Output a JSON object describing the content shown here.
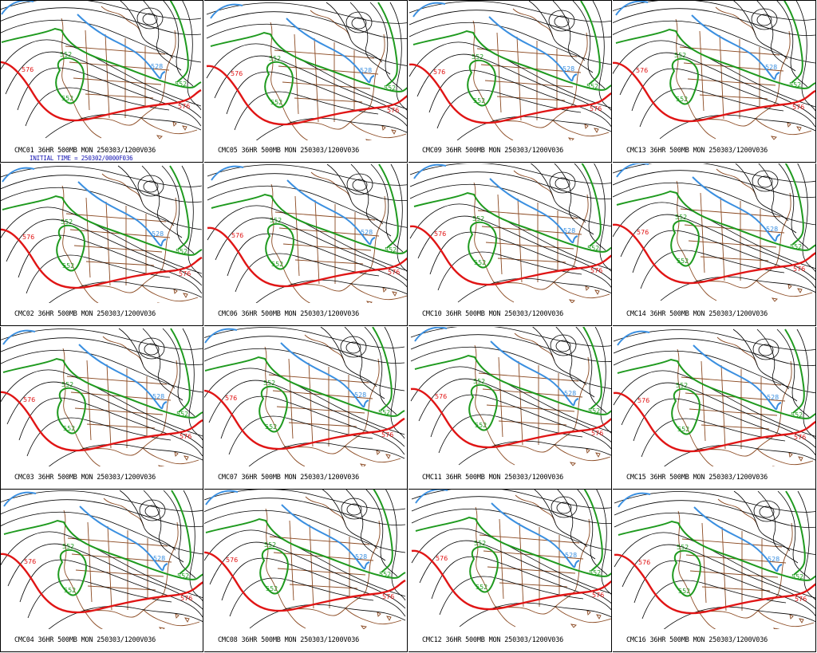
{
  "colors": {
    "background": "#ffffff",
    "height_contour": "#000000",
    "contour_552": "#1f9a1f",
    "contour_576": "#e01515",
    "contour_528": "#3a8fe0",
    "coastline": "#8b4a22",
    "initial_time_text": "#1010b0"
  },
  "contour_labels": {
    "green": "552",
    "red": "576",
    "blue": "528"
  },
  "initial_time": "INITIAL TIME = 250302/0000F036",
  "panels": [
    {
      "caption": "CMC01 36HR 500MB MON 250303/1200V036"
    },
    {
      "caption": "CMC05 36HR 500MB MON 250303/1200V036"
    },
    {
      "caption": "CMC09 36HR 500MB MON 250303/1200V036"
    },
    {
      "caption": "CMC13 36HR 500MB MON 250303/1200V036"
    },
    {
      "caption": "CMC02 36HR 500MB MON 250303/1200V036"
    },
    {
      "caption": "CMC06 36HR 500MB MON 250303/1200V036"
    },
    {
      "caption": "CMC10 36HR 500MB MON 250303/1200V036"
    },
    {
      "caption": "CMC14 36HR 500MB MON 250303/1200V036"
    },
    {
      "caption": "CMC03 36HR 500MB MON 250303/1200V036"
    },
    {
      "caption": "CMC07 36HR 500MB MON 250303/1200V036"
    },
    {
      "caption": "CMC11 36HR 500MB MON 250303/1200V036"
    },
    {
      "caption": "CMC15 36HR 500MB MON 250303/1200V036"
    },
    {
      "caption": "CMC04 36HR 500MB MON 250303/1200V036"
    },
    {
      "caption": "CMC08 36HR 500MB MON 250303/1200V036"
    },
    {
      "caption": "CMC12 36HR 500MB MON 250303/1200V036"
    },
    {
      "caption": "CMC16 36HR 500MB MON 250303/1200V036"
    }
  ]
}
